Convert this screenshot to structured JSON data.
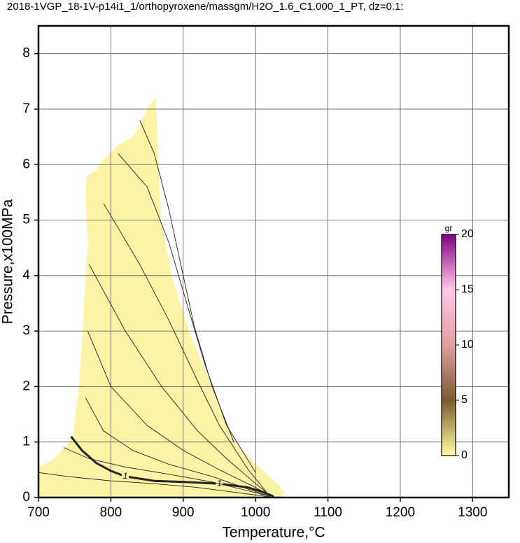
{
  "chart_data": {
    "type": "contour",
    "title": "2018-1VGP_18-1V-p14i1_1/orthopyroxene/massgm/H2O_1.6_C1.000_1_PT, dz=0.1:",
    "x_label": "Temperature,°C",
    "y_label": "Pressure,x100MPa",
    "xlim": [
      700,
      1350
    ],
    "ylim": [
      0,
      8.5
    ],
    "xticks": [
      700,
      800,
      900,
      1000,
      1100,
      1200,
      1300
    ],
    "yticks": [
      0,
      1,
      2,
      3,
      4,
      5,
      6,
      7,
      8
    ],
    "grid": true,
    "region": {
      "color": "#fbf3a6",
      "x": [
        700,
        720,
        740,
        748,
        756,
        761,
        765,
        769,
        766,
        765,
        768,
        780,
        790,
        800,
        810,
        830,
        840,
        850,
        862,
        864,
        866,
        869,
        884,
        908,
        940,
        971,
        1000,
        1030,
        1040,
        1035,
        700
      ],
      "y": [
        0.55,
        0.68,
        0.95,
        1.15,
        2.0,
        3.0,
        4.0,
        4.6,
        5.0,
        5.6,
        5.8,
        5.9,
        6.1,
        6.2,
        6.35,
        6.5,
        6.7,
        7.0,
        7.22,
        6.6,
        6.0,
        5.0,
        4.0,
        3.0,
        2.0,
        1.0,
        0.6,
        0.25,
        0.1,
        0,
        0
      ]
    },
    "contours": [
      {
        "label": "1",
        "x": [
          745,
          760,
          780,
          800,
          820,
          860,
          900,
          950,
          990,
          1010,
          1025
        ],
        "y": [
          1.1,
          0.85,
          0.62,
          0.48,
          0.38,
          0.3,
          0.28,
          0.25,
          0.18,
          0.1,
          0.02
        ]
      },
      {
        "x": [
          700,
          740,
          800,
          860,
          920,
          980,
          1020
        ],
        "y": [
          0.45,
          0.38,
          0.3,
          0.25,
          0.18,
          0.08,
          0.01
        ]
      },
      {
        "x": [
          735,
          770,
          820,
          880,
          940,
          990,
          1020
        ],
        "y": [
          0.9,
          0.7,
          0.55,
          0.42,
          0.28,
          0.12,
          0.02
        ]
      },
      {
        "x": [
          765,
          790,
          830,
          880,
          940,
          990,
          1020
        ],
        "y": [
          1.8,
          1.2,
          0.85,
          0.6,
          0.38,
          0.15,
          0.02
        ]
      },
      {
        "x": [
          768,
          800,
          850,
          900,
          950,
          1000,
          1020
        ],
        "y": [
          3.0,
          2.0,
          1.3,
          0.85,
          0.5,
          0.18,
          0.03
        ]
      },
      {
        "x": [
          770,
          820,
          870,
          920,
          960,
          1000,
          1020
        ],
        "y": [
          4.2,
          3.0,
          2.0,
          1.2,
          0.7,
          0.25,
          0.04
        ]
      },
      {
        "x": [
          790,
          840,
          880,
          920,
          950,
          990,
          1015
        ],
        "y": [
          5.3,
          4.2,
          3.2,
          2.1,
          1.3,
          0.5,
          0.1
        ]
      },
      {
        "x": [
          810,
          850,
          880,
          905,
          930,
          960,
          1000
        ],
        "y": [
          6.2,
          5.6,
          4.6,
          3.5,
          2.4,
          1.3,
          0.45
        ]
      },
      {
        "x": [
          840,
          860,
          880,
          895,
          915,
          940,
          970
        ],
        "y": [
          6.8,
          6.2,
          5.2,
          4.3,
          3.1,
          2.0,
          1.0
        ]
      }
    ],
    "colorbar": {
      "label": "gr",
      "lim": [
        0,
        20
      ],
      "ticks": [
        0,
        5,
        10,
        15,
        20
      ],
      "colors": [
        "#ffffa0",
        "#7a5a30",
        "#e0a0a0",
        "#ffc8e8",
        "#800080"
      ]
    }
  }
}
